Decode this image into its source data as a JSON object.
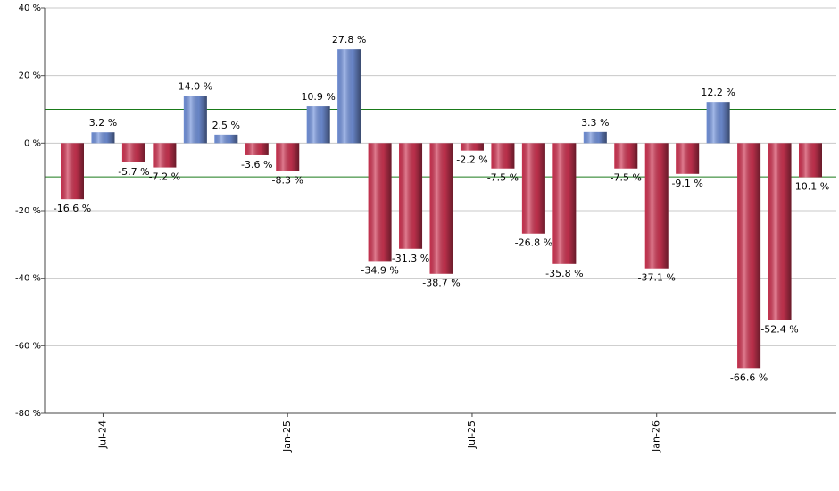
{
  "chart_data": {
    "type": "bar",
    "categories": [
      null,
      "Jul-24",
      null,
      null,
      null,
      null,
      null,
      "Jan-25",
      null,
      null,
      null,
      null,
      null,
      "Jul-25",
      null,
      null,
      null,
      null,
      null,
      "Jan-26",
      null,
      null,
      null,
      null,
      null
    ],
    "values": [
      -16.6,
      3.2,
      -5.7,
      -7.2,
      14.0,
      2.5,
      -3.6,
      -8.3,
      10.9,
      27.8,
      -34.9,
      -31.3,
      -38.7,
      -2.2,
      -7.5,
      -26.8,
      -35.8,
      3.3,
      -7.5,
      -37.1,
      -9.1,
      12.2,
      -66.6,
      -52.4,
      -10.1
    ],
    "value_labels": [
      "-16.6 %",
      "3.2 %",
      "-5.7 %",
      "-7.2 %",
      "14.0 %",
      "2.5 %",
      "-3.6 %",
      "-8.3 %",
      "10.9 %",
      "27.8 %",
      "-34.9 %",
      "-31.3 %",
      "-38.7 %",
      "-2.2 %",
      "-7.5 %",
      "-26.8 %",
      "-35.8 %",
      "3.3 %",
      "-7.5 %",
      "-37.1 %",
      "-9.1 %",
      "12.2 %",
      "-66.6 %",
      "-52.4 %",
      "-10.1 %"
    ],
    "positive_color": "#7393dc",
    "negative_color": "#cf3553",
    "ylim": [
      -80,
      40
    ],
    "yticks": [
      {
        "value": -80,
        "label": "-80 %"
      },
      {
        "value": -60,
        "label": "-60 %"
      },
      {
        "value": -40,
        "label": "-40 %"
      },
      {
        "value": -20,
        "label": "-20 %"
      },
      {
        "value": 0,
        "label": "0 %"
      },
      {
        "value": 20,
        "label": "20 %"
      },
      {
        "value": 40,
        "label": "40 %"
      }
    ],
    "reference_lines": [
      10,
      -10
    ],
    "reference_color": "#1a7a1a",
    "grid": true
  }
}
